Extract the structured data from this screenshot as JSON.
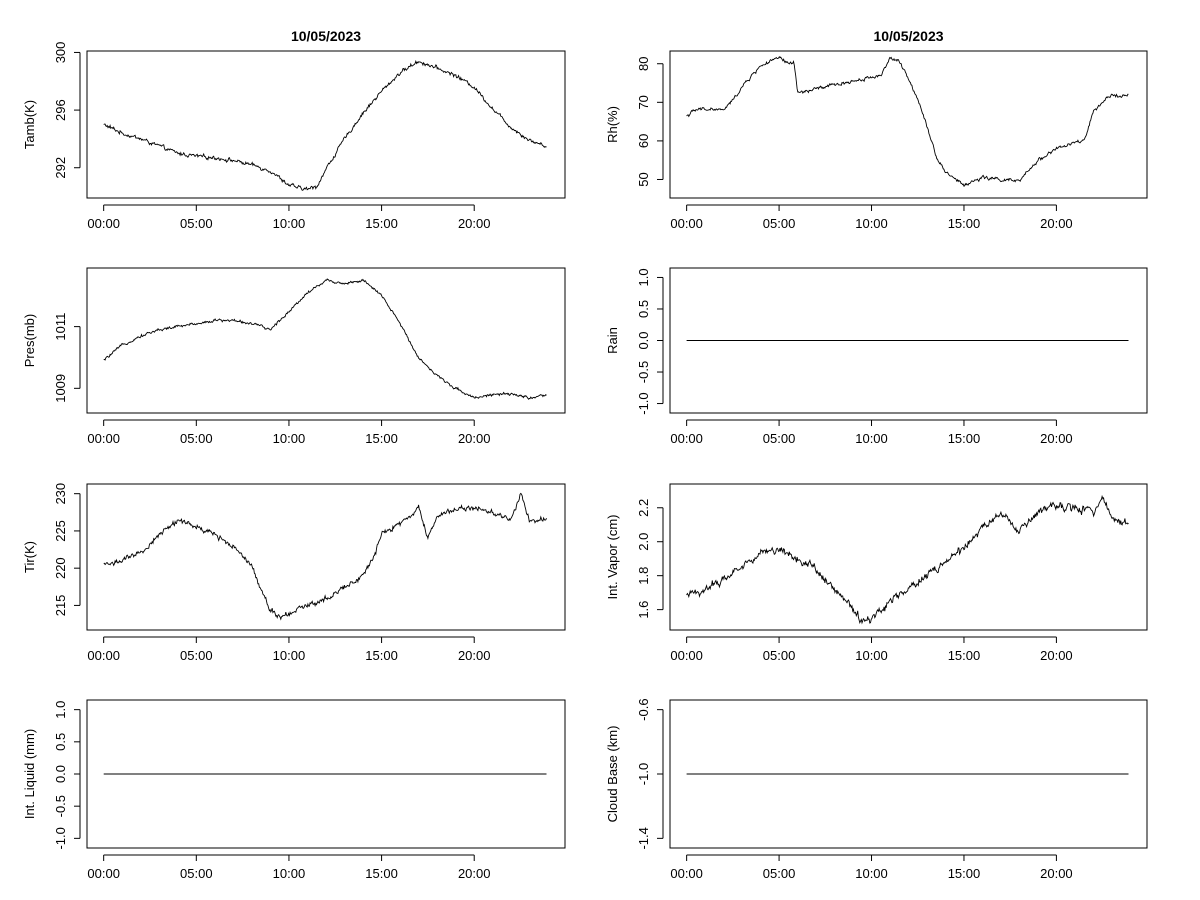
{
  "chart_data": [
    {
      "type": "line",
      "title": "10/05/2023",
      "ylabel": "Tamb(K)",
      "xlabel": "",
      "x_ticks": [
        "00:00",
        "05:00",
        "10:00",
        "15:00",
        "20:00"
      ],
      "y_ticks": [
        "292",
        "296",
        "300"
      ],
      "ylim": [
        289.9,
        300.1
      ],
      "xlim_hours": [
        -0.9,
        24.9
      ],
      "series": [
        {
          "x": [
            0,
            1,
            2,
            3,
            4,
            5,
            6,
            7,
            8,
            9,
            10,
            10.5,
            11,
            11.5,
            12,
            13,
            14,
            15,
            16,
            17,
            18,
            19,
            20,
            21,
            22,
            23,
            23.9
          ],
          "y": [
            295.0,
            294.4,
            294.0,
            293.5,
            293.0,
            292.8,
            292.7,
            292.5,
            292.2,
            291.8,
            290.8,
            290.6,
            290.5,
            290.7,
            291.9,
            294.0,
            295.8,
            297.3,
            298.6,
            299.4,
            298.9,
            298.4,
            297.6,
            296.1,
            294.8,
            293.9,
            293.5
          ]
        }
      ],
      "noise": 0.15
    },
    {
      "type": "line",
      "title": "10/05/2023",
      "ylabel": "Rh(%)",
      "xlabel": "",
      "x_ticks": [
        "00:00",
        "05:00",
        "10:00",
        "15:00",
        "20:00"
      ],
      "y_ticks": [
        "50",
        "60",
        "70",
        "80"
      ],
      "ylim": [
        45.2,
        83.3
      ],
      "xlim_hours": [
        -0.9,
        24.9
      ],
      "series": [
        {
          "x": [
            0,
            0.5,
            1,
            2,
            2.5,
            3,
            4,
            5,
            5.5,
            5.8,
            6,
            6.5,
            7,
            8,
            9,
            10,
            10.5,
            11,
            11.5,
            12,
            12.5,
            13,
            13.5,
            14,
            15,
            16,
            17,
            18,
            19,
            20,
            21,
            21.5,
            22,
            23,
            23.9
          ],
          "y": [
            66.5,
            68.0,
            68.3,
            68.0,
            70.5,
            74.0,
            79.5,
            81.5,
            80.0,
            80.5,
            72.5,
            72.8,
            73.5,
            74.5,
            75.5,
            76.5,
            77.0,
            81.5,
            80.5,
            76.0,
            71.0,
            64.0,
            56.0,
            52.0,
            48.5,
            50.5,
            50.0,
            49.5,
            55.0,
            58.0,
            59.5,
            60.0,
            67.5,
            72.0,
            71.8
          ]
        }
      ],
      "noise": 0.5
    },
    {
      "type": "line",
      "title": "",
      "ylabel": "Pres(mb)",
      "xlabel": "",
      "x_ticks": [
        "00:00",
        "05:00",
        "10:00",
        "15:00",
        "20:00"
      ],
      "y_ticks": [
        "1009",
        "1011"
      ],
      "ylim": [
        1008.2,
        1012.9
      ],
      "xlim_hours": [
        -0.9,
        24.9
      ],
      "series": [
        {
          "x": [
            0,
            1,
            2,
            3,
            4,
            5,
            6,
            7,
            8,
            9,
            10,
            11,
            12,
            13,
            14,
            15,
            16,
            17,
            18,
            19,
            20,
            21,
            22,
            23,
            23.9
          ],
          "y": [
            1009.9,
            1010.4,
            1010.7,
            1010.9,
            1011.0,
            1011.1,
            1011.2,
            1011.2,
            1011.1,
            1010.9,
            1011.5,
            1012.1,
            1012.5,
            1012.4,
            1012.5,
            1012.0,
            1011.1,
            1010.0,
            1009.4,
            1009.0,
            1008.7,
            1008.8,
            1008.8,
            1008.7,
            1008.75
          ]
        }
      ],
      "noise": 0.05
    },
    {
      "type": "line",
      "title": "",
      "ylabel": "Rain",
      "xlabel": "",
      "x_ticks": [
        "00:00",
        "05:00",
        "10:00",
        "15:00",
        "20:00"
      ],
      "y_ticks": [
        "-1.0",
        "-0.5",
        "0.0",
        "0.5",
        "1.0"
      ],
      "ylim": [
        -1.15,
        1.15
      ],
      "xlim_hours": [
        -0.9,
        24.9
      ],
      "series": [
        {
          "x": [
            0,
            23.9
          ],
          "y": [
            0,
            0
          ]
        }
      ],
      "noise": 0
    },
    {
      "type": "line",
      "title": "",
      "ylabel": "Tir(K)",
      "xlabel": "",
      "x_ticks": [
        "00:00",
        "05:00",
        "10:00",
        "15:00",
        "20:00"
      ],
      "y_ticks": [
        "215",
        "220",
        "225",
        "230"
      ],
      "ylim": [
        211.7,
        231.3
      ],
      "xlim_hours": [
        -0.9,
        24.9
      ],
      "series": [
        {
          "x": [
            0,
            1,
            2,
            3,
            4,
            5,
            6,
            7,
            8,
            8.5,
            9,
            9.5,
            10,
            11,
            12,
            13,
            14,
            14.5,
            15,
            16,
            17,
            17.5,
            18,
            19,
            20,
            21,
            22,
            22.5,
            23,
            23.9
          ],
          "y": [
            220.5,
            221.0,
            222.0,
            224.5,
            226.5,
            225.5,
            224.5,
            223.0,
            220.5,
            217.0,
            214.5,
            213.5,
            214.0,
            215.0,
            216.0,
            217.5,
            219.0,
            221.0,
            224.5,
            226.0,
            228.0,
            224.0,
            227.0,
            228.0,
            228.0,
            227.5,
            226.5,
            230.0,
            226.5,
            226.5
          ]
        }
      ],
      "noise": 0.4
    },
    {
      "type": "line",
      "title": "",
      "ylabel": "Int. Vapor (cm)",
      "xlabel": "",
      "x_ticks": [
        "00:00",
        "05:00",
        "10:00",
        "15:00",
        "20:00"
      ],
      "y_ticks": [
        "1.6",
        "1.8",
        "2.0",
        "2.2"
      ],
      "ylim": [
        1.48,
        2.34
      ],
      "xlim_hours": [
        -0.9,
        24.9
      ],
      "series": [
        {
          "x": [
            0,
            1,
            2,
            3,
            4,
            5,
            6,
            7,
            8,
            9,
            9.5,
            10,
            11,
            12,
            13,
            14,
            15,
            16,
            17,
            18,
            19,
            20,
            21,
            22,
            22.5,
            23,
            23.9
          ],
          "y": [
            1.68,
            1.72,
            1.78,
            1.86,
            1.93,
            1.96,
            1.9,
            1.84,
            1.72,
            1.6,
            1.53,
            1.55,
            1.65,
            1.73,
            1.8,
            1.88,
            1.96,
            2.08,
            2.17,
            2.05,
            2.18,
            2.2,
            2.2,
            2.17,
            2.28,
            2.14,
            2.1
          ]
        }
      ],
      "noise": 0.025
    },
    {
      "type": "line",
      "title": "",
      "ylabel": "Int. Liquid (mm)",
      "xlabel": "",
      "x_ticks": [
        "00:00",
        "05:00",
        "10:00",
        "15:00",
        "20:00"
      ],
      "y_ticks": [
        "-1.0",
        "-0.5",
        "0.0",
        "0.5",
        "1.0"
      ],
      "ylim": [
        -1.15,
        1.15
      ],
      "xlim_hours": [
        -0.9,
        24.9
      ],
      "series": [
        {
          "x": [
            0,
            23.9
          ],
          "y": [
            0,
            0
          ]
        }
      ],
      "noise": 0
    },
    {
      "type": "line",
      "title": "",
      "ylabel": "Cloud Base (km)",
      "xlabel": "",
      "x_ticks": [
        "00:00",
        "05:00",
        "10:00",
        "15:00",
        "20:00"
      ],
      "y_ticks": [
        "-1.4",
        "-1.0",
        "-0.6"
      ],
      "ylim": [
        -1.46,
        -0.54
      ],
      "xlim_hours": [
        -0.9,
        24.9
      ],
      "series": [
        {
          "x": [
            0,
            23.9
          ],
          "y": [
            -1.0,
            -1.0
          ]
        }
      ],
      "noise": 0
    }
  ]
}
